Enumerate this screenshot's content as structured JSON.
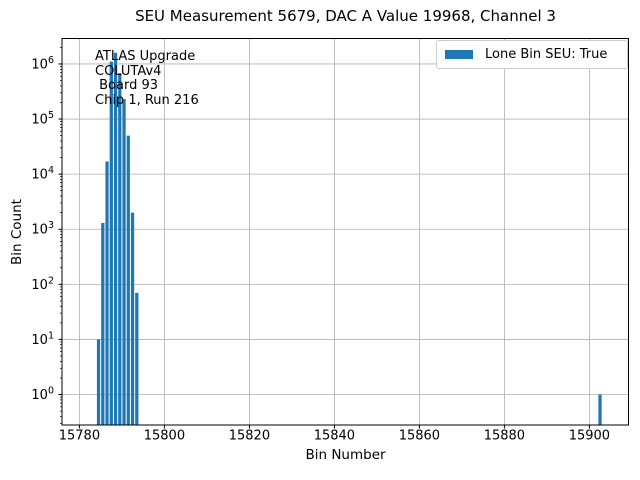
{
  "chart_data": {
    "type": "bar",
    "title": "SEU Measurement 5679, DAC A Value 19968, Channel 3",
    "xlabel": "Bin Number",
    "ylabel": "Bin Count",
    "yscale": "log",
    "bins": [
      15784,
      15785,
      15786,
      15787,
      15788,
      15789,
      15790,
      15791,
      15792,
      15793,
      15902
    ],
    "counts": [
      10,
      1300,
      17000,
      1100000,
      1600000,
      680000,
      230000,
      50000,
      2000,
      70,
      1
    ],
    "bin_width": 1,
    "x_ticks": [
      15780,
      15800,
      15820,
      15840,
      15860,
      15880,
      15900
    ],
    "y_tick_exponents": [
      0,
      1,
      2,
      3,
      4,
      5,
      6
    ],
    "xlim": [
      15775.9,
      15909.2
    ],
    "ylim_exponents": [
      -0.553,
      6.462
    ],
    "grid": true,
    "legend": {
      "label": "Lone Bin SEU: True",
      "position": "upper right"
    },
    "annotation": "ATLAS Upgrade\nCOLUTAv4\n Board 93\nChip 1, Run 216",
    "colors": {
      "bar": "#1f77b4",
      "grid": "#b0b0b0",
      "spine": "#000000",
      "legend_border": "#cccccc",
      "text": "#000000",
      "background": "#ffffff"
    }
  }
}
